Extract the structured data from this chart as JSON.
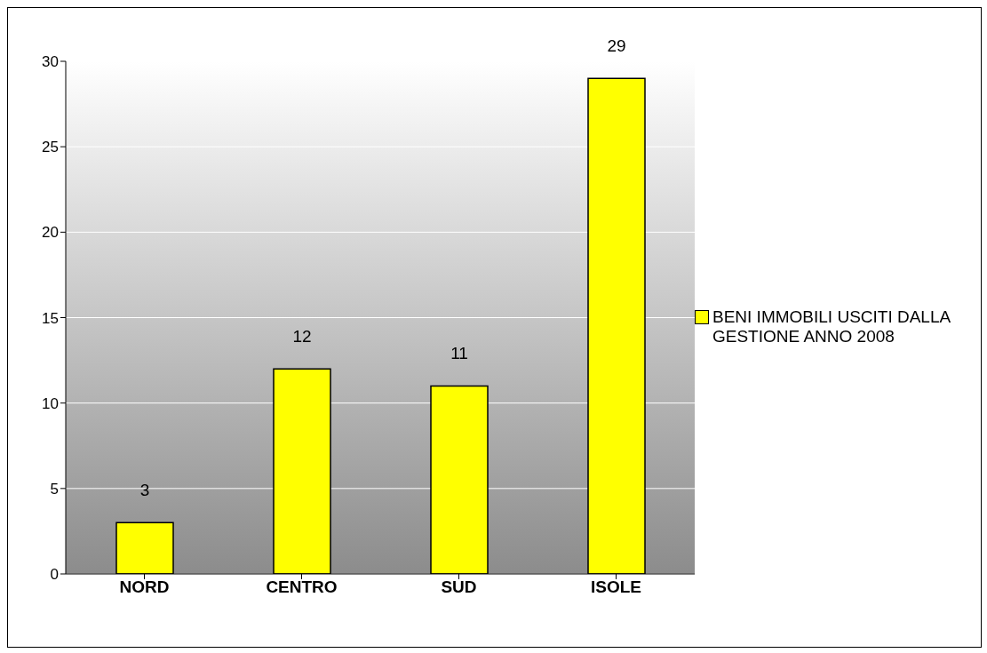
{
  "chart_data": {
    "type": "bar",
    "categories": [
      "NORD",
      "CENTRO",
      "SUD",
      "ISOLE"
    ],
    "series": [
      {
        "name": "BENI IMMOBILI USCITI DALLA GESTIONE ANNO 2008",
        "color": "#ffff00",
        "values": [
          3,
          12,
          11,
          29
        ]
      }
    ],
    "ylim": [
      0,
      30
    ],
    "yticks": [
      0,
      5,
      10,
      15,
      20,
      25,
      30
    ],
    "grid": "y",
    "legend": "right",
    "data_labels": true
  }
}
